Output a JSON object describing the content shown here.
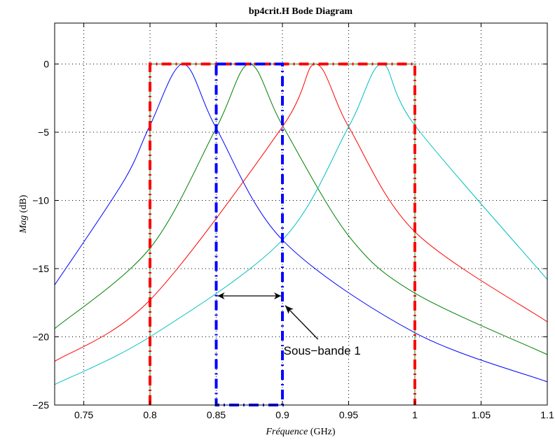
{
  "chart_data": {
    "type": "line",
    "title": "bp4crit.H Bode Diagram",
    "xlabel_italic": "Fréquence",
    "xlabel_unit": " (GHz)",
    "ylabel_italic": "Mag",
    "ylabel_unit": " (dB)",
    "xlim": [
      0.728,
      1.1
    ],
    "ylim": [
      -25,
      3
    ],
    "xticks": [
      0.75,
      0.8,
      0.85,
      0.9,
      0.95,
      1.0,
      1.05,
      1.1
    ],
    "xtick_labels": [
      "0.75",
      "0.8",
      "0.85",
      "0.9",
      "0.95",
      "1",
      "1.05",
      "1.1"
    ],
    "yticks": [
      0,
      -5,
      -10,
      -15,
      -20,
      -25
    ],
    "ytick_labels": [
      "0",
      "−5",
      "−10",
      "−15",
      "−20",
      "−25"
    ],
    "grid": true,
    "series": [
      {
        "center": 0.825,
        "color": "#0000ff",
        "x": [
          0.728,
          0.78,
          0.8,
          0.825,
          0.85,
          0.9,
          1.0,
          1.1
        ],
        "y": [
          -16.2,
          -8.6,
          -4.5,
          0.0,
          -4.7,
          -12.9,
          -19.7,
          -23.3
        ]
      },
      {
        "center": 0.875,
        "color": "#007f00",
        "x": [
          0.728,
          0.8,
          0.85,
          0.875,
          0.9,
          0.95,
          1.0,
          1.1
        ],
        "y": [
          -19.4,
          -13.5,
          -4.7,
          0.0,
          -4.5,
          -12.6,
          -16.8,
          -21.3
        ]
      },
      {
        "center": 0.925,
        "color": "#ff0000",
        "x": [
          0.728,
          0.8,
          0.9,
          0.925,
          0.95,
          1.0,
          1.1
        ],
        "y": [
          -21.8,
          -17.3,
          -4.6,
          0.0,
          -4.6,
          -12.3,
          -18.9
        ]
      },
      {
        "center": 0.975,
        "color": "#00bfbf",
        "x": [
          0.728,
          0.8,
          0.9,
          0.95,
          0.975,
          1.0,
          1.1
        ],
        "y": [
          -23.5,
          -20.0,
          -12.9,
          -4.6,
          0.0,
          -4.5,
          -15.8
        ]
      }
    ],
    "band_overall": {
      "x": [
        0.8,
        1.0
      ],
      "y": [
        -25,
        0
      ],
      "color": "#ff0000"
    },
    "band_sub1": {
      "x": [
        0.85,
        0.9
      ],
      "y": [
        -25,
        0
      ],
      "color": "#0000ff"
    },
    "arrow": {
      "x1": 0.85,
      "x2": 0.9,
      "y": -17
    },
    "annotation": {
      "text": "Sous−bande 1",
      "x": 0.93,
      "y": -21.0,
      "pointer": {
        "x": 0.901,
        "y": -17.6
      }
    }
  }
}
